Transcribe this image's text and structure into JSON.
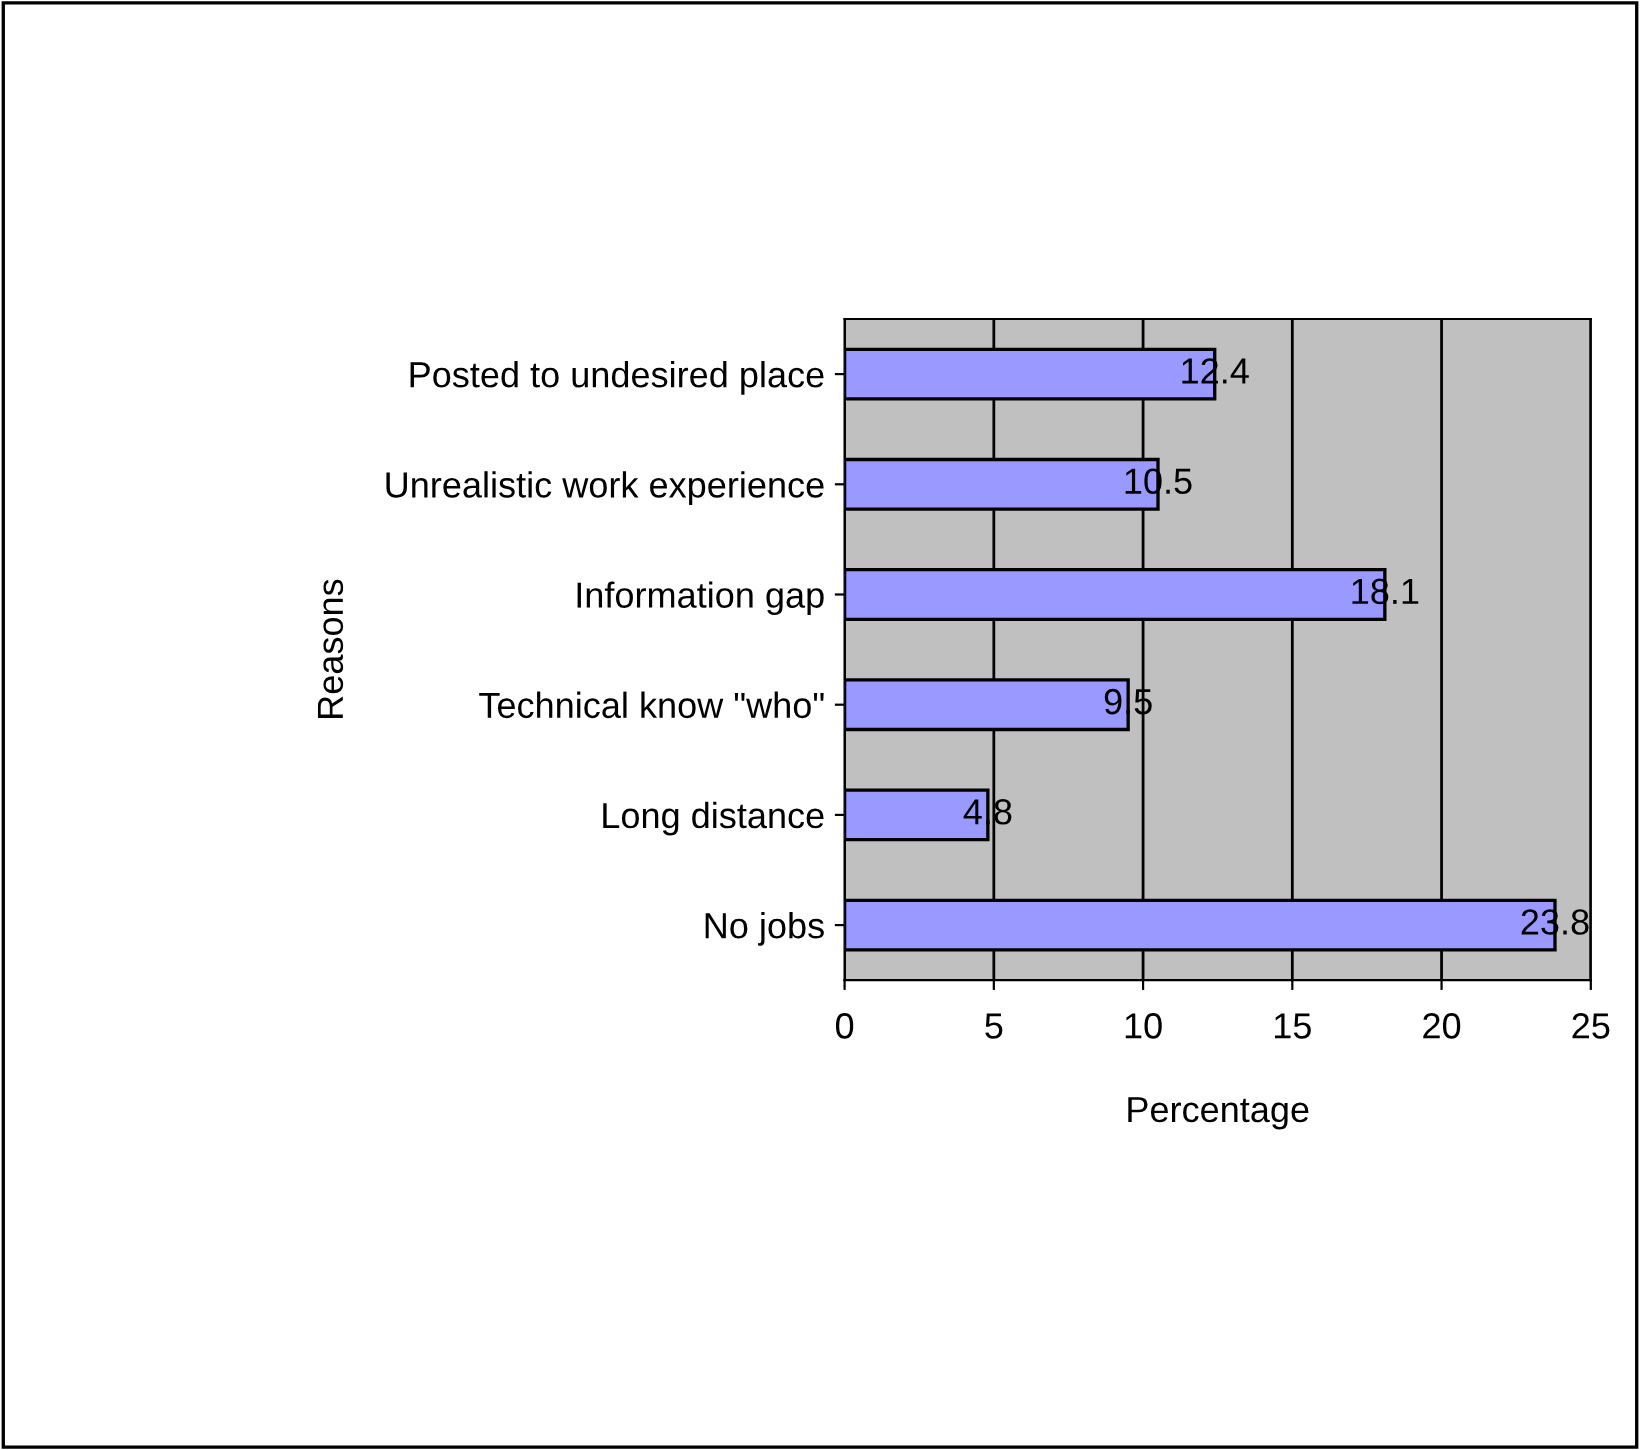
{
  "chart_data": {
    "type": "bar",
    "orientation": "horizontal",
    "xlabel": "Percentage",
    "ylabel": "Reasons",
    "categories": [
      "Posted to undesired place",
      "Unrealistic work experience",
      "Information gap",
      "Technical know \"who\"",
      "Long distance",
      "No jobs"
    ],
    "values": [
      12.4,
      10.5,
      18.1,
      9.5,
      4.8,
      23.8
    ],
    "color": "#9999ff",
    "xlim": [
      0,
      25
    ],
    "xticks": [
      0,
      5,
      10,
      15,
      20,
      25
    ],
    "grid": "x",
    "data_labels": true,
    "legend": false
  }
}
